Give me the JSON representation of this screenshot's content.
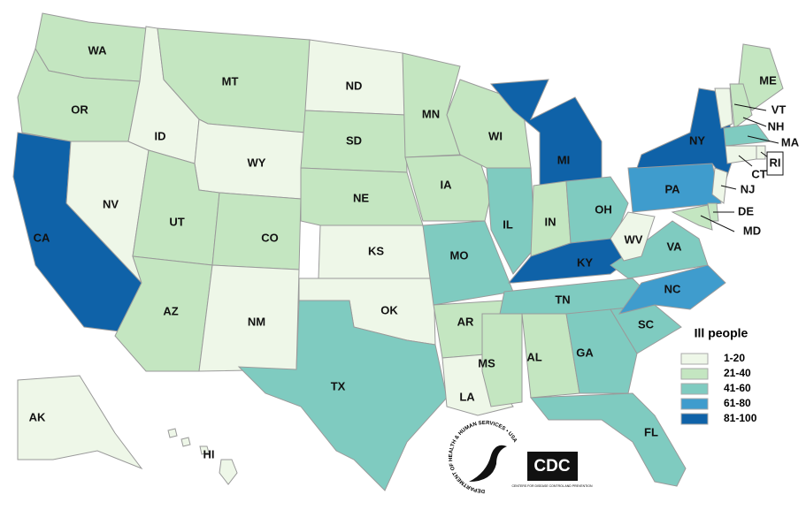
{
  "legend": {
    "title": "Ill people",
    "items": [
      {
        "label": "1-20",
        "color": "#eef7e8"
      },
      {
        "label": "21-40",
        "color": "#c4e6c1"
      },
      {
        "label": "41-60",
        "color": "#7fcbc0"
      },
      {
        "label": "61-80",
        "color": "#3f9ccd"
      },
      {
        "label": "81-100",
        "color": "#0f62a8"
      }
    ]
  },
  "states": [
    {
      "abbr": "WA",
      "color": "#c4e6c1"
    },
    {
      "abbr": "OR",
      "color": "#c4e6c1"
    },
    {
      "abbr": "CA",
      "color": "#0f62a8"
    },
    {
      "abbr": "NV",
      "color": "#eef7e8"
    },
    {
      "abbr": "ID",
      "color": "#eef7e8"
    },
    {
      "abbr": "MT",
      "color": "#c4e6c1"
    },
    {
      "abbr": "WY",
      "color": "#eef7e8"
    },
    {
      "abbr": "UT",
      "color": "#c4e6c1"
    },
    {
      "abbr": "CO",
      "color": "#c4e6c1"
    },
    {
      "abbr": "AZ",
      "color": "#c4e6c1"
    },
    {
      "abbr": "NM",
      "color": "#eef7e8"
    },
    {
      "abbr": "ND",
      "color": "#eef7e8"
    },
    {
      "abbr": "SD",
      "color": "#c4e6c1"
    },
    {
      "abbr": "NE",
      "color": "#c4e6c1"
    },
    {
      "abbr": "KS",
      "color": "#eef7e8"
    },
    {
      "abbr": "OK",
      "color": "#eef7e8"
    },
    {
      "abbr": "TX",
      "color": "#7fcbc0"
    },
    {
      "abbr": "MN",
      "color": "#c4e6c1"
    },
    {
      "abbr": "IA",
      "color": "#c4e6c1"
    },
    {
      "abbr": "MO",
      "color": "#7fcbc0"
    },
    {
      "abbr": "AR",
      "color": "#c4e6c1"
    },
    {
      "abbr": "LA",
      "color": "#eef7e8"
    },
    {
      "abbr": "WI",
      "color": "#c4e6c1"
    },
    {
      "abbr": "IL",
      "color": "#7fcbc0"
    },
    {
      "abbr": "MI",
      "color": "#0f62a8"
    },
    {
      "abbr": "IN",
      "color": "#c4e6c1"
    },
    {
      "abbr": "OH",
      "color": "#7fcbc0"
    },
    {
      "abbr": "KY",
      "color": "#0f62a8"
    },
    {
      "abbr": "TN",
      "color": "#7fcbc0"
    },
    {
      "abbr": "MS",
      "color": "#c4e6c1"
    },
    {
      "abbr": "AL",
      "color": "#c4e6c1"
    },
    {
      "abbr": "GA",
      "color": "#7fcbc0"
    },
    {
      "abbr": "FL",
      "color": "#7fcbc0"
    },
    {
      "abbr": "SC",
      "color": "#7fcbc0"
    },
    {
      "abbr": "NC",
      "color": "#3f9ccd"
    },
    {
      "abbr": "VA",
      "color": "#7fcbc0"
    },
    {
      "abbr": "WV",
      "color": "#eef7e8"
    },
    {
      "abbr": "PA",
      "color": "#3f9ccd"
    },
    {
      "abbr": "NY",
      "color": "#0f62a8"
    },
    {
      "abbr": "ME",
      "color": "#c4e6c1"
    },
    {
      "abbr": "VT",
      "color": "#eef7e8"
    },
    {
      "abbr": "NH",
      "color": "#c4e6c1"
    },
    {
      "abbr": "MA",
      "color": "#7fcbc0"
    },
    {
      "abbr": "RI",
      "color": "#eef7e8"
    },
    {
      "abbr": "CT",
      "color": "#eef7e8"
    },
    {
      "abbr": "NJ",
      "color": "#eef7e8"
    },
    {
      "abbr": "DE",
      "color": "#c4e6c1"
    },
    {
      "abbr": "MD",
      "color": "#c4e6c1"
    },
    {
      "abbr": "AK",
      "color": "#eef7e8"
    },
    {
      "abbr": "HI",
      "color": "#eef7e8"
    }
  ],
  "logos": {
    "hhs": "DEPARTMENT OF HEALTH & HUMAN SERVICES • USA",
    "cdc": "CDC",
    "cdc_sub": "CENTERS FOR DISEASE CONTROL AND PREVENTION"
  }
}
